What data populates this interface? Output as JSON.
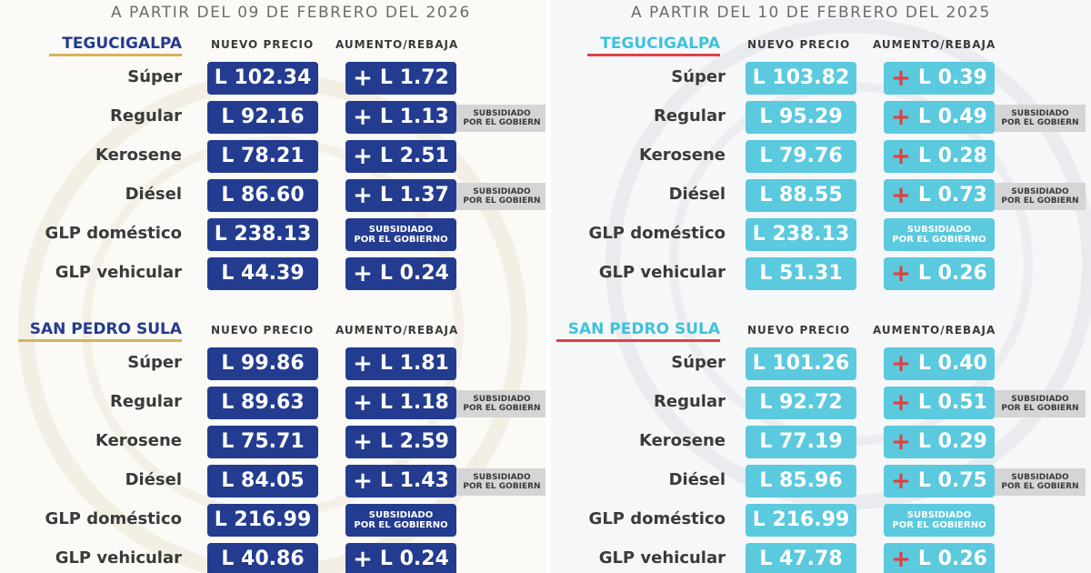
{
  "panels": [
    {
      "date_title": "A PARTIR DEL 09 DE FEBRERO DEL 2026",
      "price_header": "NUEVO PRECIO",
      "change_header": "AUMENTO/REBAJA",
      "colors": {
        "box": "#233c8f",
        "city": "#233c8f",
        "underline": "#d7b35a",
        "sign": "#ffffff"
      },
      "sections": [
        {
          "city": "TEGUCIGALPA",
          "rows": [
            {
              "fuel": "Súper",
              "price": "L 102.34",
              "change": "L 1.72",
              "sign": "+"
            },
            {
              "fuel": "Regular",
              "price": "L 92.16",
              "change": "L 1.13",
              "sign": "+",
              "note_l1": "SUBSIDIADO",
              "note_l2": "POR EL GOBIERN"
            },
            {
              "fuel": "Kerosene",
              "price": "L 78.21",
              "change": "L 2.51",
              "sign": "+"
            },
            {
              "fuel": "Diésel",
              "price": "L 86.60",
              "change": "L 1.37",
              "sign": "+",
              "note_l1": "SUBSIDIADO",
              "note_l2": "POR EL GOBIERN"
            },
            {
              "fuel": "GLP doméstico",
              "price": "L 238.13",
              "sub_l1": "SUBSIDIADO",
              "sub_l2": "POR EL GOBIERNO"
            },
            {
              "fuel": "GLP vehicular",
              "price": "L 44.39",
              "change": "L 0.24",
              "sign": "+"
            }
          ]
        },
        {
          "city": "SAN PEDRO SULA",
          "rows": [
            {
              "fuel": "Súper",
              "price": "L 99.86",
              "change": "L 1.81",
              "sign": "+"
            },
            {
              "fuel": "Regular",
              "price": "L 89.63",
              "change": "L 1.18",
              "sign": "+",
              "note_l1": "SUBSIDIADO",
              "note_l2": "POR EL GOBIERN"
            },
            {
              "fuel": "Kerosene",
              "price": "L 75.71",
              "change": "L 2.59",
              "sign": "+"
            },
            {
              "fuel": "Diésel",
              "price": "L 84.05",
              "change": "L 1.43",
              "sign": "+",
              "note_l1": "SUBSIDIADO",
              "note_l2": "POR EL GOBIERN"
            },
            {
              "fuel": "GLP doméstico",
              "price": "L 216.99",
              "sub_l1": "SUBSIDIADO",
              "sub_l2": "POR EL GOBIERNO"
            },
            {
              "fuel": "GLP vehicular",
              "price": "L 40.86",
              "change": "L 0.24",
              "sign": "+"
            }
          ]
        }
      ]
    },
    {
      "date_title": "A PARTIR DEL 10 DE FEBRERO DEL 2025",
      "price_header": "NUEVO PRECIO",
      "change_header": "AUMENTO/REBAJA",
      "colors": {
        "box": "#5bc9de",
        "city": "#3cc3dc",
        "underline": "#e0404a",
        "sign": "#e63b3b"
      },
      "sections": [
        {
          "city": "TEGUCIGALPA",
          "rows": [
            {
              "fuel": "Súper",
              "price": "L 103.82",
              "change": "L 0.39",
              "sign": "+"
            },
            {
              "fuel": "Regular",
              "price": "L 95.29",
              "change": "L 0.49",
              "sign": "+",
              "note_l1": "SUBSIDIADO",
              "note_l2": "POR EL GOBIERN"
            },
            {
              "fuel": "Kerosene",
              "price": "L 79.76",
              "change": "L 0.28",
              "sign": "+"
            },
            {
              "fuel": "Diésel",
              "price": "L 88.55",
              "change": "L 0.73",
              "sign": "+",
              "note_l1": "SUBSIDIADO",
              "note_l2": "POR EL GOBIERN"
            },
            {
              "fuel": "GLP doméstico",
              "price": "L 238.13",
              "sub_l1": "SUBSIDIADO",
              "sub_l2": "POR EL GOBIERNO"
            },
            {
              "fuel": "GLP vehicular",
              "price": "L 51.31",
              "change": "L 0.26",
              "sign": "+"
            }
          ]
        },
        {
          "city": "SAN PEDRO SULA",
          "rows": [
            {
              "fuel": "Súper",
              "price": "L 101.26",
              "change": "L 0.40",
              "sign": "+"
            },
            {
              "fuel": "Regular",
              "price": "L 92.72",
              "change": "L 0.51",
              "sign": "+",
              "note_l1": "SUBSIDIADO",
              "note_l2": "POR EL GOBIERN"
            },
            {
              "fuel": "Kerosene",
              "price": "L 77.19",
              "change": "L 0.29",
              "sign": "+"
            },
            {
              "fuel": "Diésel",
              "price": "L 85.96",
              "change": "L 0.75",
              "sign": "+",
              "note_l1": "SUBSIDIADO",
              "note_l2": "POR EL GOBIERN"
            },
            {
              "fuel": "GLP doméstico",
              "price": "L 216.99",
              "sub_l1": "SUBSIDIADO",
              "sub_l2": "POR EL GOBIERNO"
            },
            {
              "fuel": "GLP vehicular",
              "price": "L 47.78",
              "change": "L 0.26",
              "sign": "+"
            }
          ]
        }
      ]
    }
  ]
}
